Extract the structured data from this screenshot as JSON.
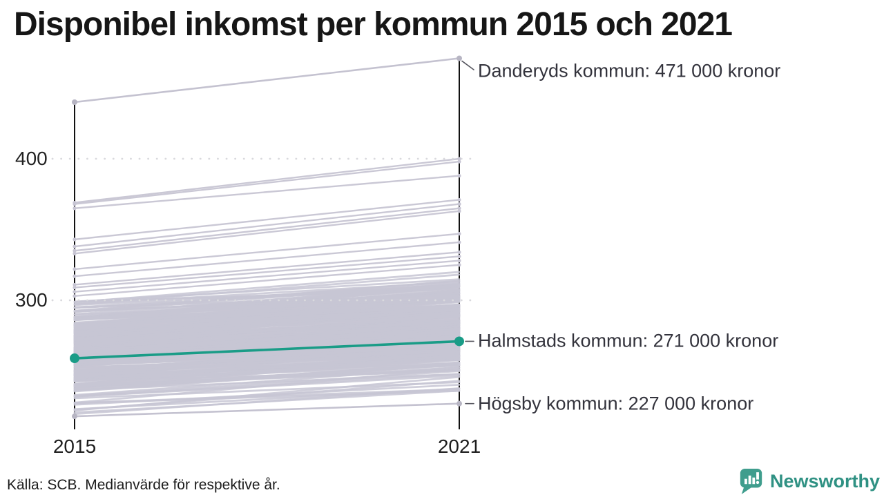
{
  "title": "Disponibel inkomst per kommun 2015 och 2021",
  "source_note": "Källa: SCB. Medianvärde för respektive år.",
  "branding": {
    "name": "Newsworthy",
    "icon": "newsworthy-chart-bubble-icon",
    "text_color": "#2f9183",
    "mark_color": "#3f9d8d"
  },
  "chart_data": {
    "type": "line",
    "subtype": "slopegraph",
    "title": "Disponibel inkomst per kommun 2015 och 2021",
    "unit": "tusen kronor",
    "x_categories": [
      "2015",
      "2021"
    ],
    "y_ticks": [
      {
        "value": 400,
        "label": "400"
      },
      {
        "value": 300,
        "label": "300"
      }
    ],
    "grid": "dotted horizontal lines at y ticks",
    "legend": "none",
    "series": [
      {
        "name": "Danderyds kommun",
        "values": [
          440,
          471
        ],
        "emphasis": false,
        "color": "#c4c2d0",
        "annotation": "Danderyds kommun: 471 000 kronor"
      },
      {
        "name": "Halmstads kommun",
        "values": [
          259,
          271
        ],
        "emphasis": true,
        "color": "#1a9c87",
        "annotation": "Halmstads kommun: 271 000 kronor"
      },
      {
        "name": "Högsby kommun",
        "values": [
          218,
          227
        ],
        "emphasis": false,
        "color": "#c4c2d0",
        "annotation": "Högsby kommun: 227 000 kronor"
      }
    ],
    "background_series": {
      "description": "Övriga svenska kommuner (oannoterade grå linjer), värden 2015 och 2021",
      "color": "#c7c5d3",
      "upper_lines": [
        [
          369,
          400
        ],
        [
          368,
          398
        ],
        [
          365,
          388
        ],
        [
          343,
          371
        ],
        [
          338,
          368
        ],
        [
          335,
          365
        ],
        [
          333,
          363
        ],
        [
          322,
          347
        ],
        [
          317,
          341
        ],
        [
          311,
          334
        ],
        [
          309,
          331
        ],
        [
          306,
          328
        ],
        [
          303,
          325
        ]
      ],
      "band": {
        "count": 274,
        "v2015_min": 219,
        "v2015_max": 305,
        "slope_min": 8,
        "slope_max": 24,
        "v2021_min": 229,
        "seed": 7
      }
    },
    "annotation_dot_color": "#b7b5c3",
    "leader_color": "#55555e",
    "grid_color": "#d9d9dd",
    "axis_color": "#111111"
  }
}
